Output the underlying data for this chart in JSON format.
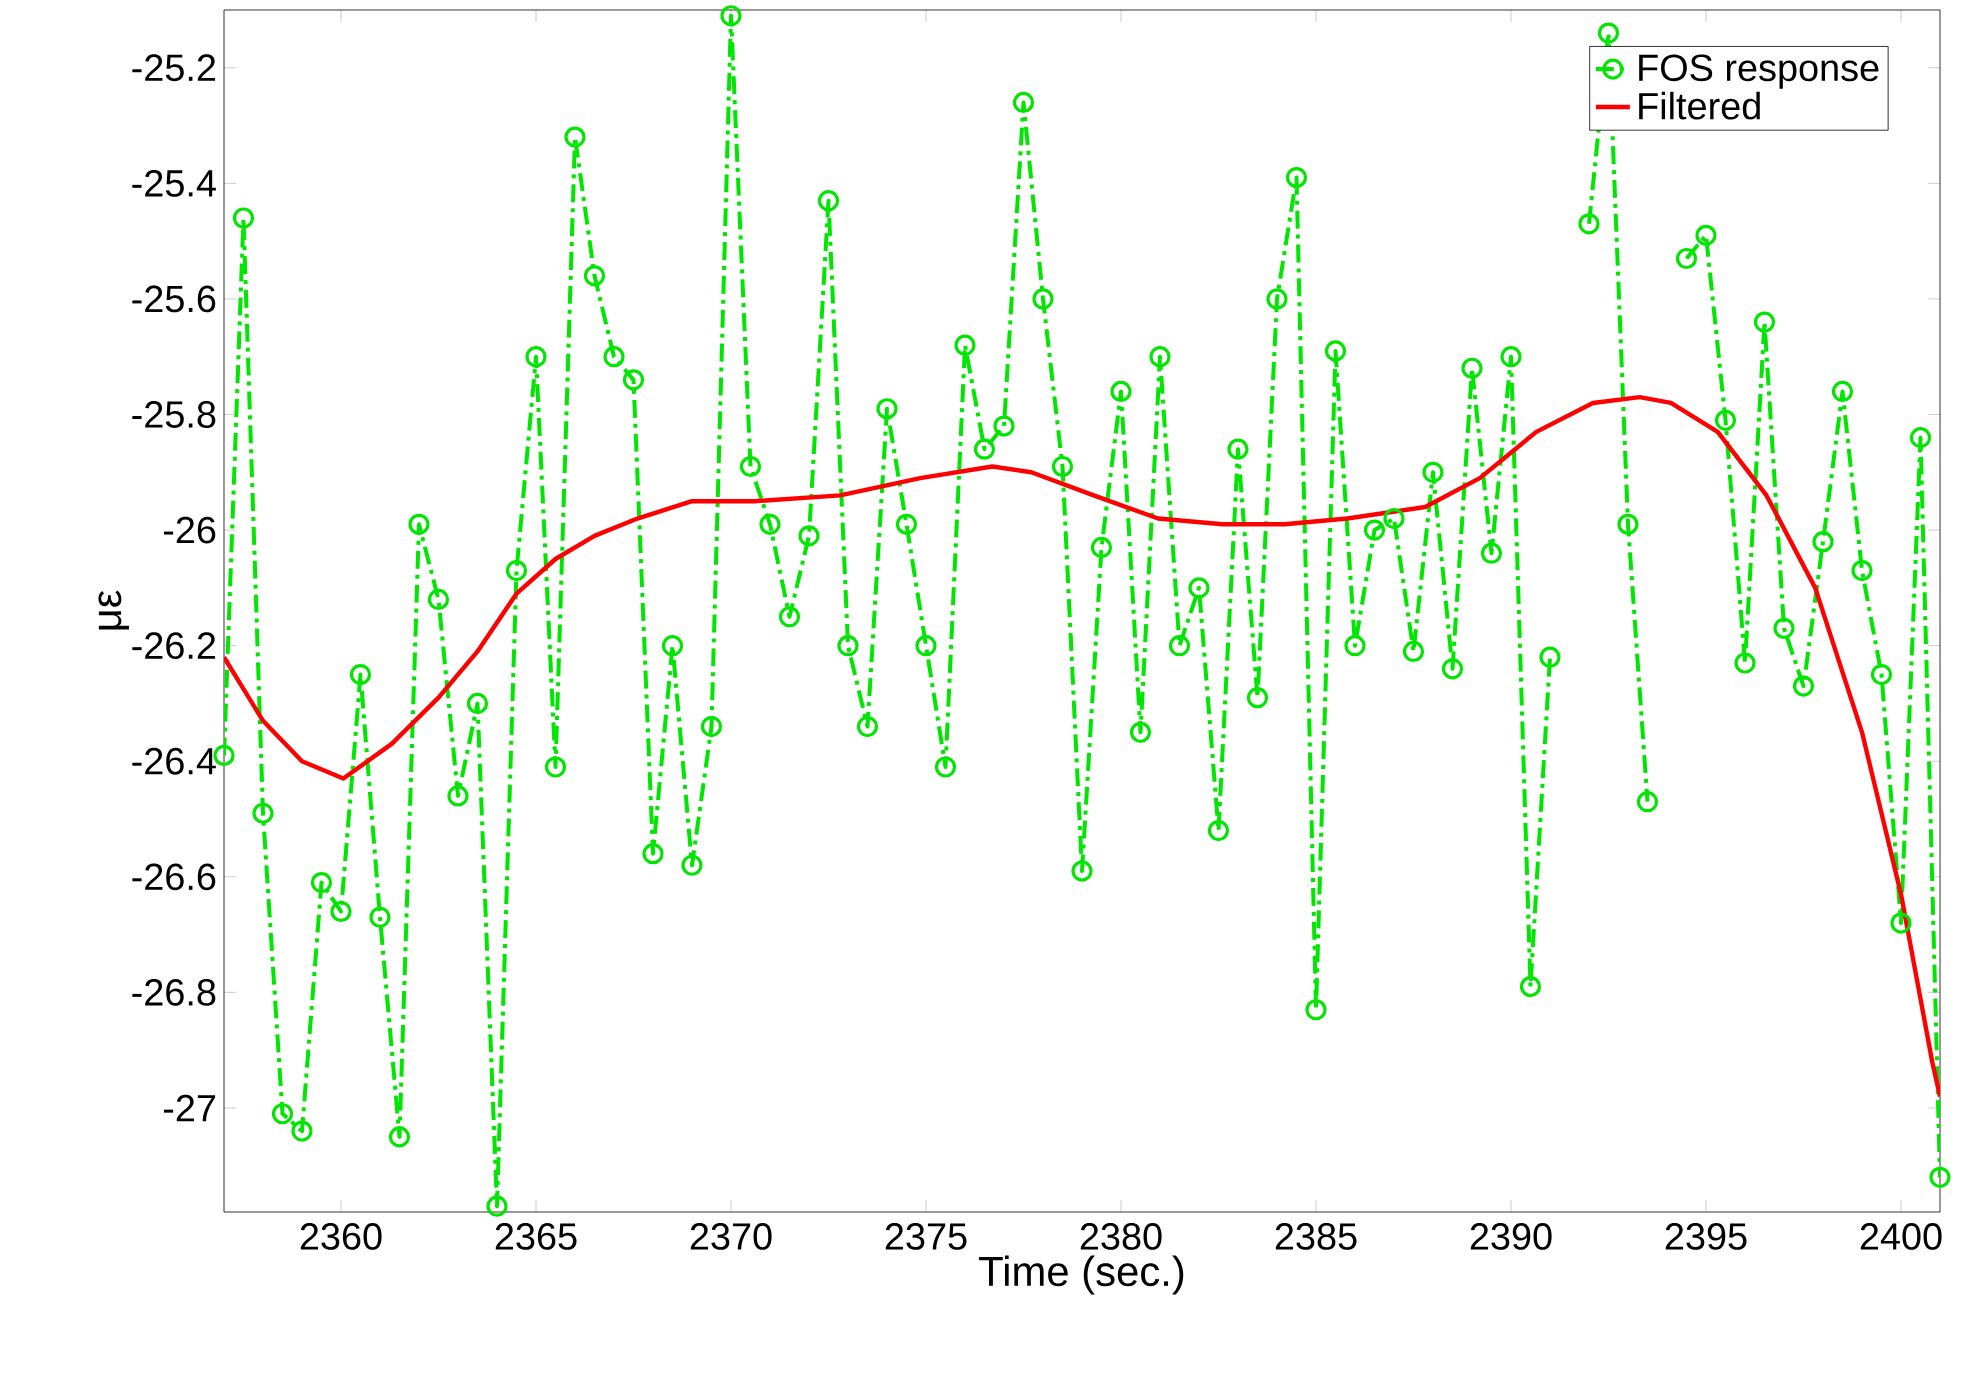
{
  "chart_data": {
    "type": "line",
    "xlabel": "Time (sec.)",
    "ylabel": "με",
    "xlim": [
      2357,
      2401
    ],
    "ylim": [
      -27.18,
      -25.1
    ],
    "xticks": [
      2360,
      2365,
      2370,
      2375,
      2380,
      2385,
      2390,
      2395,
      2400
    ],
    "yticks": [
      -27,
      -26.8,
      -26.6,
      -26.4,
      -26.2,
      -26,
      -25.8,
      -25.6,
      -25.4,
      -25.2
    ],
    "grid": false,
    "legend": "top right",
    "series": [
      {
        "name": "FOS response",
        "color": "#00e600",
        "marker": "circle",
        "line_style": "dashdot",
        "x": [
          2357.0,
          2357.5,
          2358.0,
          2358.5,
          2359.0,
          2359.5,
          2360.0,
          2360.5,
          2361.0,
          2361.5,
          2362.0,
          2362.5,
          2363.0,
          2363.5,
          2364.0,
          2364.5,
          2365.0,
          2365.5,
          2366.0,
          2366.5,
          2367.0,
          2367.5,
          2368.0,
          2368.5,
          2369.0,
          2369.5,
          2370.0,
          2370.5,
          2371.0,
          2371.5,
          2372.0,
          2372.5,
          2373.0,
          2373.5,
          2374.0,
          2374.5,
          2375.0,
          2375.5,
          2376.0,
          2376.5,
          2377.0,
          2377.5,
          2378.0,
          2378.5,
          2379.0,
          2379.5,
          2380.0,
          2380.5,
          2381.0,
          2381.5,
          2382.0,
          2382.5,
          2383.0,
          2383.5,
          2384.0,
          2384.5,
          2385.0,
          2385.5,
          2386.0,
          2386.5,
          2387.0,
          2387.5,
          2388.0,
          2388.5,
          2389.0,
          2389.5,
          2390.0,
          2390.5,
          2391.0,
          2391.5,
          2392.0,
          2392.5,
          2393.0,
          2393.5,
          2394.0,
          2394.5,
          2395.0,
          2395.5,
          2396.0,
          2396.5,
          2397.0,
          2397.5,
          2398.0,
          2398.5,
          2399.0,
          2399.5,
          2400.0,
          2400.5,
          2401.0
        ],
        "values": [
          -26.39,
          -25.46,
          -26.49,
          -27.01,
          -27.04,
          -26.61,
          -26.66,
          -26.25,
          -26.67,
          -27.05,
          -25.99,
          -26.12,
          -26.46,
          -26.3,
          -27.17,
          -26.07,
          -25.7,
          -26.41,
          -25.32,
          -25.56,
          -25.7,
          -25.74,
          -26.56,
          -26.2,
          -26.58,
          -26.34,
          -25.11,
          -25.89,
          -25.99,
          -26.15,
          -26.01,
          -25.43,
          -26.2,
          -26.34,
          -25.79,
          -25.99,
          -26.2,
          -26.41,
          -25.68,
          -25.86,
          -25.82,
          -25.26,
          -25.6,
          -25.89,
          -26.59,
          -26.03,
          -25.76,
          -26.35,
          -25.7,
          -26.2,
          -26.1,
          -26.52,
          -25.86,
          -26.29,
          -25.6,
          -25.39,
          -26.83,
          -25.69,
          -26.2,
          -26.0,
          -25.98,
          -26.21,
          -25.9,
          -26.24,
          -25.72,
          -26.04,
          -25.7,
          -26.79,
          -26.22,
          null,
          -25.47,
          -25.14,
          -25.99,
          -26.47,
          null,
          -25.53,
          -25.49,
          -25.81,
          -26.23,
          -25.64,
          -26.17,
          -26.27,
          -26.02,
          -25.76,
          -26.07,
          -26.25,
          -26.68,
          -25.84,
          -27.12
        ]
      },
      {
        "name": "Filtered",
        "color": "#ff0000",
        "marker": "none",
        "line_style": "solid",
        "x": [
          2357.0,
          2358.0,
          2359.0,
          2360.06,
          2361.3,
          2362.5,
          2363.5,
          2364.5,
          2365.5,
          2366.5,
          2367.6,
          2369.0,
          2370.6,
          2372.8,
          2374.85,
          2376.7,
          2377.7,
          2379.3,
          2380.95,
          2382.6,
          2384.2,
          2385.8,
          2387.8,
          2389.2,
          2390.65,
          2392.1,
          2393.3,
          2394.1,
          2395.3,
          2396.55,
          2397.8,
          2399.0,
          2400.0,
          2400.8,
          2401.0
        ],
        "values": [
          -26.22,
          -26.33,
          -26.4,
          -26.43,
          -26.37,
          -26.29,
          -26.21,
          -26.11,
          -26.05,
          -26.01,
          -25.98,
          -25.95,
          -25.95,
          -25.94,
          -25.91,
          -25.89,
          -25.9,
          -25.94,
          -25.98,
          -25.99,
          -25.99,
          -25.98,
          -25.96,
          -25.91,
          -25.83,
          -25.78,
          -25.77,
          -25.78,
          -25.83,
          -25.94,
          -26.1,
          -26.35,
          -26.63,
          -26.92,
          -26.98
        ]
      }
    ]
  }
}
